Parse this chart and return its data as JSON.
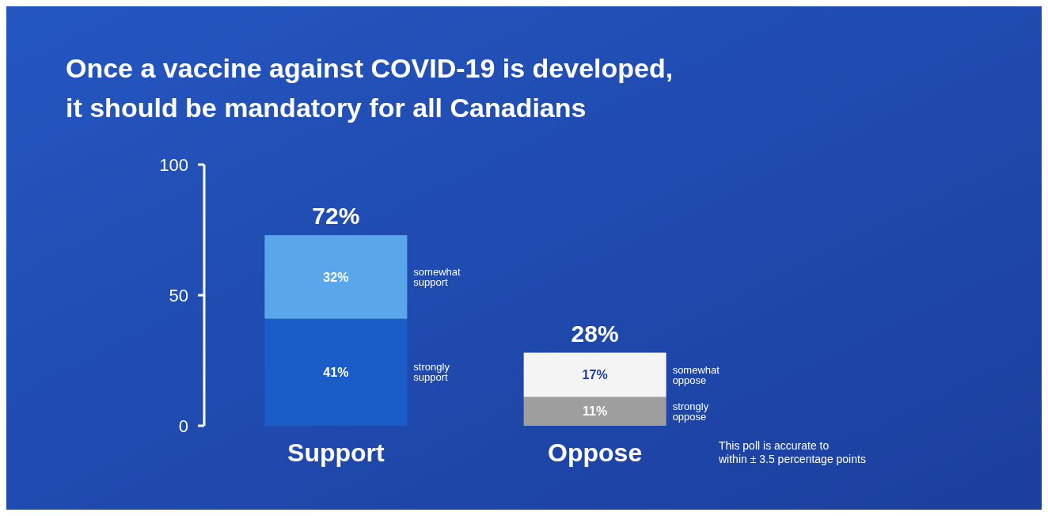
{
  "chart_data": {
    "type": "bar",
    "title": "Once a vaccine against COVID-19 is developed, it should be mandatory for all Canadians",
    "categories": [
      "Support",
      "Oppose"
    ],
    "stacked": true,
    "ylim": [
      0,
      100
    ],
    "yticks": [
      0,
      50,
      100
    ],
    "series": [
      {
        "colors": [
          "#1a5cc8",
          "#9e9e9e"
        ],
        "values": [
          41,
          11
        ],
        "value_labels": [
          "41%",
          "11%"
        ]
      },
      {
        "colors": [
          "#5aa6ea",
          "#f4f4f4"
        ],
        "values": [
          32,
          17
        ],
        "value_labels": [
          "32%",
          "17%"
        ]
      }
    ],
    "totals": [
      "72%",
      "28%"
    ],
    "annotations": [
      "strongly support",
      "strongly oppose",
      "somewhat support",
      "somewhat oppose",
      "This poll is accurate to within ± 3.5 percentage points"
    ]
  }
}
